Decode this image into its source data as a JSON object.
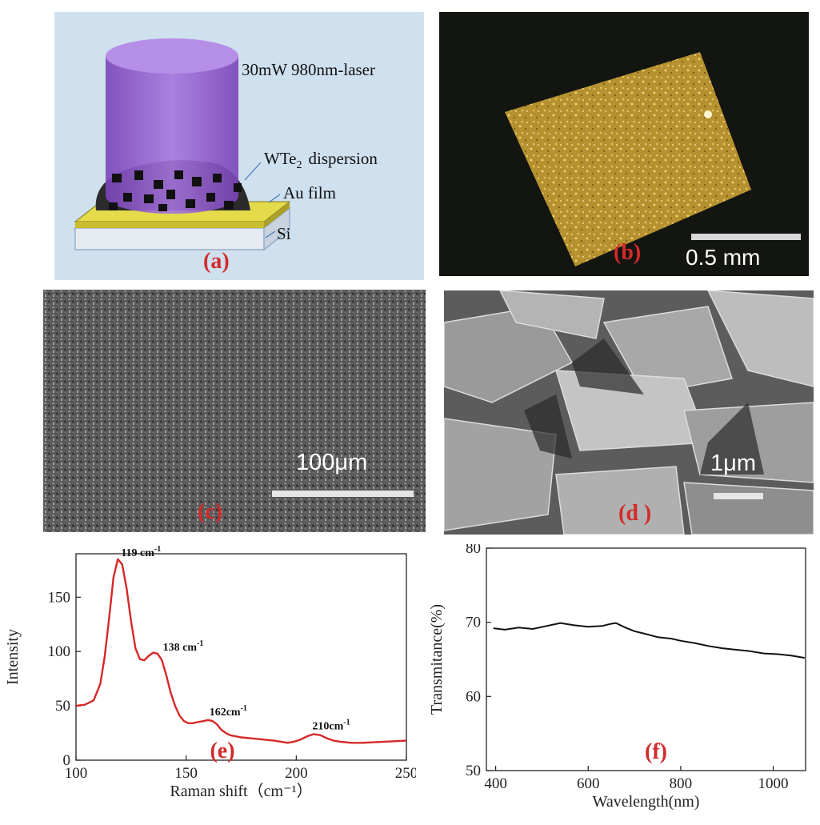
{
  "panel_a": {
    "label": "(a)",
    "laser_text": "30mW 980nm-laser",
    "dispersion_text_main": "WTe",
    "dispersion_text_sub": "2",
    "dispersion_text_rest": "dispersion",
    "au_text": "Au film",
    "si_text": "Si",
    "colors": {
      "background": "#cfe0ef",
      "laser": "#8a52c8",
      "gold": "#e2d94a",
      "si": "#e9edf3"
    }
  },
  "panel_b": {
    "label": "(b)",
    "scale_text": "0.5 mm"
  },
  "panel_c": {
    "label": "(c)",
    "scale_text": "100μm"
  },
  "panel_d": {
    "label": "(d )",
    "scale_text": "1μm"
  },
  "chart_data": [
    {
      "type": "line",
      "panel_label": "(e)",
      "title": "",
      "xlabel": "Raman shift（cm⁻¹）",
      "ylabel": "Intensity",
      "xlim": [
        100,
        250
      ],
      "ylim": [
        0,
        190
      ],
      "xticks": [
        "100",
        "150",
        "200",
        "250"
      ],
      "yticks": [
        "0",
        "50",
        "100",
        "150"
      ],
      "line_color": "#d62828",
      "peaks": [
        {
          "x": 119,
          "y": 185,
          "base": "119 cm",
          "sup": "-1"
        },
        {
          "x": 138,
          "y": 98,
          "base": "138 cm",
          "sup": "-1"
        },
        {
          "x": 162,
          "y": 37,
          "base": "162cm",
          "sup": "-1"
        },
        {
          "x": 208,
          "y": 24,
          "base": "210cm",
          "sup": "-1"
        }
      ],
      "series": [
        {
          "x": [
            100,
            104,
            108,
            111,
            113,
            115,
            117,
            119,
            121,
            123,
            125,
            127,
            129,
            131,
            133,
            135,
            137,
            139,
            141,
            143,
            145,
            147,
            149,
            151,
            153,
            155,
            158,
            160,
            162,
            164,
            166,
            168,
            170,
            175,
            180,
            185,
            190,
            193,
            196,
            199,
            202,
            205,
            208,
            211,
            214,
            217,
            220,
            225,
            230,
            240,
            250
          ],
          "values": [
            50,
            51,
            55,
            70,
            95,
            130,
            168,
            185,
            180,
            158,
            128,
            103,
            93,
            92,
            96,
            99,
            98,
            92,
            78,
            62,
            50,
            41,
            36,
            34,
            34,
            35,
            36,
            37,
            36,
            33,
            28,
            25,
            23,
            21,
            20,
            19,
            18,
            17,
            16,
            17,
            19,
            22,
            24,
            23,
            20,
            18,
            17,
            16,
            16,
            17,
            18
          ]
        }
      ]
    },
    {
      "type": "line",
      "panel_label": "(f)",
      "title": "",
      "xlabel": "Wavelength(nm)",
      "ylabel": "Transmitance(%)",
      "xlim": [
        380,
        1070
      ],
      "ylim": [
        50,
        80
      ],
      "xticks": [
        "400",
        "600",
        "800",
        "1000"
      ],
      "yticks": [
        "50",
        "60",
        "70",
        "80"
      ],
      "line_color": "#111111",
      "series": [
        {
          "x": [
            395,
            420,
            450,
            480,
            510,
            540,
            570,
            600,
            630,
            650,
            660,
            680,
            700,
            720,
            750,
            780,
            800,
            830,
            860,
            890,
            920,
            950,
            980,
            1010,
            1040,
            1068
          ],
          "values": [
            69.2,
            69.0,
            69.3,
            69.1,
            69.5,
            69.9,
            69.6,
            69.4,
            69.5,
            69.8,
            69.9,
            69.3,
            68.8,
            68.5,
            68.0,
            67.8,
            67.5,
            67.2,
            66.8,
            66.5,
            66.3,
            66.1,
            65.8,
            65.7,
            65.5,
            65.2
          ]
        }
      ]
    }
  ]
}
